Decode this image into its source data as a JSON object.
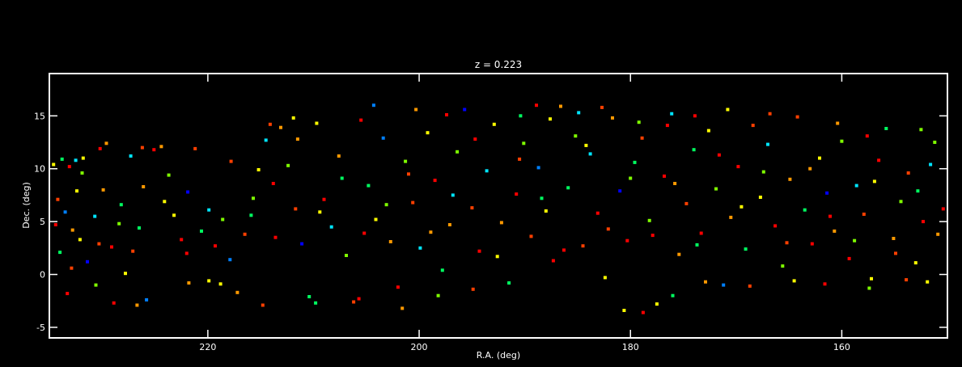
{
  "chart_data": {
    "type": "scatter",
    "title": "z = 0.223",
    "xlabel": "R.A. (deg)",
    "ylabel": "Dec. (deg)",
    "xlim": [
      235,
      150
    ],
    "ylim": [
      -6,
      19
    ],
    "x_ticks": [
      220,
      200,
      180,
      160
    ],
    "x_tick_labels": [
      "220",
      "200",
      "180",
      "160"
    ],
    "y_ticks": [
      -5,
      0,
      5,
      10,
      15
    ],
    "y_tick_labels": [
      "-5",
      "0",
      "5",
      "10",
      "15"
    ],
    "grid": false,
    "background": "#000000",
    "colors": [
      "#4b0082",
      "#0000ff",
      "#0080ff",
      "#00e5ff",
      "#00ff60",
      "#7fff00",
      "#ffff00",
      "#ff9900",
      "#ff4000",
      "#ff0000"
    ],
    "points": [
      [
        234.6,
        10.4,
        6
      ],
      [
        233.8,
        10.9,
        4
      ],
      [
        233.1,
        10.2,
        9
      ],
      [
        232.5,
        10.8,
        3
      ],
      [
        231.9,
        9.6,
        5
      ],
      [
        234.2,
        7.1,
        8
      ],
      [
        233.5,
        5.9,
        2
      ],
      [
        232.8,
        4.2,
        7
      ],
      [
        234.0,
        2.1,
        4
      ],
      [
        233.3,
        -1.8,
        9
      ],
      [
        232.1,
        3.3,
        6
      ],
      [
        231.4,
        1.2,
        1
      ],
      [
        230.7,
        5.5,
        3
      ],
      [
        229.9,
        8.0,
        7
      ],
      [
        229.1,
        2.6,
        9
      ],
      [
        228.4,
        4.8,
        5
      ],
      [
        227.8,
        0.1,
        6
      ],
      [
        227.1,
        2.2,
        8
      ],
      [
        226.5,
        4.4,
        4
      ],
      [
        225.8,
        -2.4,
        2
      ],
      [
        225.1,
        11.8,
        9
      ],
      [
        224.4,
        12.1,
        7
      ],
      [
        223.7,
        9.4,
        5
      ],
      [
        227.3,
        11.2,
        3
      ],
      [
        226.2,
        12.0,
        8
      ],
      [
        223.2,
        5.6,
        6
      ],
      [
        222.5,
        3.3,
        9
      ],
      [
        221.9,
        7.8,
        1
      ],
      [
        221.2,
        11.9,
        8
      ],
      [
        220.6,
        4.1,
        4
      ],
      [
        219.9,
        -0.6,
        6
      ],
      [
        219.3,
        2.7,
        9
      ],
      [
        218.6,
        5.2,
        5
      ],
      [
        217.9,
        1.4,
        2
      ],
      [
        217.2,
        -1.7,
        7
      ],
      [
        216.5,
        3.8,
        8
      ],
      [
        215.9,
        5.6,
        4
      ],
      [
        215.2,
        9.9,
        6
      ],
      [
        214.5,
        12.7,
        3
      ],
      [
        213.8,
        8.6,
        9
      ],
      [
        213.1,
        13.9,
        7
      ],
      [
        212.4,
        10.3,
        5
      ],
      [
        211.7,
        6.2,
        8
      ],
      [
        211.1,
        2.9,
        1
      ],
      [
        210.4,
        -2.1,
        4
      ],
      [
        209.7,
        14.3,
        6
      ],
      [
        209.0,
        7.1,
        9
      ],
      [
        208.3,
        4.5,
        3
      ],
      [
        207.6,
        11.2,
        7
      ],
      [
        206.9,
        1.8,
        5
      ],
      [
        206.2,
        -2.6,
        8
      ],
      [
        205.5,
        14.6,
        9
      ],
      [
        204.8,
        8.4,
        4
      ],
      [
        204.1,
        5.2,
        6
      ],
      [
        203.4,
        12.9,
        2
      ],
      [
        202.7,
        3.1,
        7
      ],
      [
        202.0,
        -1.2,
        9
      ],
      [
        201.3,
        10.7,
        5
      ],
      [
        200.6,
        6.8,
        8
      ],
      [
        199.9,
        2.5,
        3
      ],
      [
        199.2,
        13.4,
        6
      ],
      [
        198.5,
        8.9,
        9
      ],
      [
        197.8,
        0.4,
        4
      ],
      [
        197.1,
        4.7,
        7
      ],
      [
        196.4,
        11.6,
        5
      ],
      [
        195.7,
        15.6,
        1
      ],
      [
        195.0,
        6.3,
        8
      ],
      [
        194.3,
        2.2,
        9
      ],
      [
        193.6,
        9.8,
        3
      ],
      [
        192.9,
        14.2,
        6
      ],
      [
        192.2,
        4.9,
        7
      ],
      [
        191.5,
        -0.8,
        4
      ],
      [
        190.8,
        7.6,
        9
      ],
      [
        190.1,
        12.4,
        5
      ],
      [
        189.4,
        3.6,
        8
      ],
      [
        188.7,
        10.1,
        2
      ],
      [
        188.0,
        6.0,
        6
      ],
      [
        187.3,
        1.3,
        9
      ],
      [
        186.6,
        15.9,
        7
      ],
      [
        185.9,
        8.2,
        4
      ],
      [
        185.2,
        13.1,
        5
      ],
      [
        184.5,
        2.7,
        8
      ],
      [
        183.8,
        11.4,
        3
      ],
      [
        183.1,
        5.8,
        9
      ],
      [
        182.4,
        -0.3,
        6
      ],
      [
        181.7,
        14.8,
        7
      ],
      [
        181.0,
        7.9,
        1
      ],
      [
        180.3,
        3.2,
        9
      ],
      [
        179.6,
        10.6,
        4
      ],
      [
        178.9,
        12.9,
        8
      ],
      [
        178.2,
        5.1,
        5
      ],
      [
        177.5,
        -2.8,
        6
      ],
      [
        176.8,
        9.3,
        9
      ],
      [
        176.1,
        15.2,
        3
      ],
      [
        175.4,
        1.9,
        7
      ],
      [
        174.7,
        6.7,
        8
      ],
      [
        174.0,
        11.8,
        4
      ],
      [
        173.3,
        3.9,
        9
      ],
      [
        172.6,
        13.6,
        6
      ],
      [
        171.9,
        8.1,
        5
      ],
      [
        171.2,
        -1.0,
        2
      ],
      [
        170.5,
        5.4,
        7
      ],
      [
        169.8,
        10.2,
        9
      ],
      [
        169.1,
        2.4,
        4
      ],
      [
        168.4,
        14.1,
        8
      ],
      [
        167.7,
        7.3,
        6
      ],
      [
        167.0,
        12.3,
        3
      ],
      [
        166.3,
        4.6,
        9
      ],
      [
        165.6,
        0.8,
        5
      ],
      [
        164.9,
        9.0,
        7
      ],
      [
        164.2,
        14.9,
        8
      ],
      [
        163.5,
        6.1,
        4
      ],
      [
        162.8,
        2.9,
        9
      ],
      [
        162.1,
        11.0,
        6
      ],
      [
        161.4,
        7.7,
        1
      ],
      [
        160.7,
        4.1,
        7
      ],
      [
        160.0,
        12.6,
        5
      ],
      [
        159.3,
        1.5,
        9
      ],
      [
        158.6,
        8.4,
        3
      ],
      [
        157.9,
        5.7,
        8
      ],
      [
        157.2,
        -0.4,
        6
      ],
      [
        156.5,
        10.8,
        9
      ],
      [
        155.8,
        13.8,
        4
      ],
      [
        155.1,
        3.4,
        7
      ],
      [
        154.4,
        6.9,
        5
      ],
      [
        153.7,
        9.6,
        8
      ],
      [
        153.0,
        1.1,
        6
      ],
      [
        152.3,
        5.0,
        9
      ],
      [
        151.6,
        10.4,
        3
      ],
      [
        150.9,
        3.8,
        7
      ],
      [
        150.4,
        6.2,
        9
      ],
      [
        151.2,
        12.5,
        5
      ],
      [
        152.8,
        7.9,
        4
      ],
      [
        154.9,
        2.0,
        8
      ],
      [
        156.9,
        8.8,
        6
      ],
      [
        158.8,
        3.2,
        5
      ],
      [
        161.1,
        5.5,
        9
      ],
      [
        163.0,
        10.0,
        7
      ],
      [
        165.2,
        3.0,
        8
      ],
      [
        167.4,
        9.7,
        5
      ],
      [
        169.5,
        6.4,
        6
      ],
      [
        171.6,
        11.3,
        9
      ],
      [
        173.7,
        2.8,
        4
      ],
      [
        175.8,
        8.6,
        7
      ],
      [
        177.9,
        3.7,
        9
      ],
      [
        180.0,
        9.1,
        5
      ],
      [
        182.1,
        4.3,
        8
      ],
      [
        184.2,
        12.2,
        6
      ],
      [
        186.3,
        2.3,
        9
      ],
      [
        188.4,
        7.2,
        4
      ],
      [
        190.5,
        10.9,
        8
      ],
      [
        192.6,
        1.7,
        6
      ],
      [
        194.7,
        12.8,
        9
      ],
      [
        196.8,
        7.5,
        3
      ],
      [
        198.9,
        4.0,
        7
      ],
      [
        201.0,
        9.5,
        8
      ],
      [
        203.1,
        6.6,
        5
      ],
      [
        205.2,
        3.9,
        9
      ],
      [
        207.3,
        9.1,
        4
      ],
      [
        209.4,
        5.9,
        6
      ],
      [
        211.5,
        12.8,
        7
      ],
      [
        213.6,
        3.5,
        9
      ],
      [
        215.7,
        7.2,
        5
      ],
      [
        217.8,
        10.7,
        8
      ],
      [
        219.9,
        6.1,
        3
      ],
      [
        222.0,
        2.0,
        9
      ],
      [
        224.1,
        6.9,
        6
      ],
      [
        226.1,
        8.3,
        7
      ],
      [
        228.2,
        6.6,
        4
      ],
      [
        230.3,
        2.9,
        8
      ],
      [
        232.4,
        7.9,
        6
      ],
      [
        234.4,
        4.7,
        9
      ],
      [
        188.9,
        16.0,
        9
      ],
      [
        187.6,
        14.7,
        6
      ],
      [
        184.9,
        15.3,
        3
      ],
      [
        182.7,
        15.8,
        8
      ],
      [
        179.2,
        14.4,
        5
      ],
      [
        176.5,
        14.1,
        9
      ],
      [
        190.4,
        15.0,
        4
      ],
      [
        200.3,
        15.6,
        7
      ],
      [
        204.3,
        16.0,
        2
      ],
      [
        197.4,
        15.1,
        9
      ],
      [
        211.9,
        14.8,
        6
      ],
      [
        214.1,
        14.2,
        8
      ],
      [
        160.4,
        14.3,
        7
      ],
      [
        157.6,
        13.1,
        9
      ],
      [
        152.5,
        13.7,
        5
      ],
      [
        166.8,
        15.2,
        8
      ],
      [
        170.8,
        15.6,
        6
      ],
      [
        173.9,
        15.0,
        9
      ],
      [
        221.8,
        -0.8,
        7
      ],
      [
        218.8,
        -0.9,
        6
      ],
      [
        214.8,
        -2.9,
        8
      ],
      [
        209.8,
        -2.7,
        4
      ],
      [
        205.7,
        -2.3,
        9
      ],
      [
        201.6,
        -3.2,
        7
      ],
      [
        198.2,
        -2.0,
        5
      ],
      [
        194.9,
        -1.4,
        8
      ],
      [
        180.6,
        -3.4,
        6
      ],
      [
        178.8,
        -3.6,
        9
      ],
      [
        176.0,
        -2.0,
        4
      ],
      [
        172.9,
        -0.7,
        7
      ],
      [
        168.7,
        -1.1,
        8
      ],
      [
        164.5,
        -0.6,
        6
      ],
      [
        161.6,
        -0.9,
        9
      ],
      [
        157.4,
        -1.3,
        5
      ],
      [
        153.9,
        -0.5,
        8
      ],
      [
        151.9,
        -0.7,
        6
      ],
      [
        228.9,
        -2.7,
        9
      ],
      [
        226.7,
        -2.9,
        7
      ],
      [
        230.6,
        -1.0,
        5
      ],
      [
        232.9,
        0.6,
        8
      ],
      [
        231.8,
        11.0,
        6
      ],
      [
        230.2,
        11.9,
        9
      ],
      [
        229.6,
        12.4,
        7
      ]
    ]
  }
}
